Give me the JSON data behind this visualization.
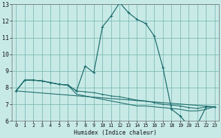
{
  "xlabel": "Humidex (Indice chaleur)",
  "bg_color": "#c8eae6",
  "grid_color": "#7ab8b5",
  "line_color": "#1a6b6b",
  "xlim": [
    -0.5,
    23.5
  ],
  "ylim": [
    6,
    13
  ],
  "yticks": [
    6,
    7,
    8,
    9,
    10,
    11,
    12,
    13
  ],
  "xticks": [
    0,
    1,
    2,
    3,
    4,
    5,
    6,
    7,
    8,
    9,
    10,
    11,
    12,
    13,
    14,
    15,
    16,
    17,
    18,
    19,
    20,
    21,
    22,
    23
  ],
  "line1_x": [
    0,
    1,
    2,
    3,
    4,
    5,
    6,
    7,
    8,
    9,
    10,
    11,
    12,
    13,
    14,
    15,
    16,
    17,
    18,
    19,
    20,
    21,
    22,
    23
  ],
  "line1_y": [
    7.8,
    8.45,
    8.45,
    8.4,
    8.3,
    8.2,
    8.15,
    7.8,
    9.3,
    8.9,
    11.65,
    12.3,
    13.1,
    12.5,
    12.1,
    11.85,
    11.1,
    9.2,
    6.7,
    6.3,
    5.7,
    5.8,
    6.85,
    6.85
  ],
  "line2_x": [
    0,
    1,
    2,
    3,
    4,
    5,
    6,
    7,
    8,
    9,
    10,
    11,
    12,
    13,
    14,
    15,
    16,
    17,
    18,
    19,
    20,
    21,
    22,
    23
  ],
  "line2_y": [
    7.8,
    8.45,
    8.45,
    8.4,
    8.3,
    8.2,
    8.15,
    7.8,
    7.75,
    7.7,
    7.6,
    7.5,
    7.45,
    7.35,
    7.25,
    7.2,
    7.1,
    7.0,
    6.95,
    6.9,
    6.8,
    6.75,
    6.85,
    6.85
  ],
  "line3_x": [
    0,
    1,
    2,
    3,
    4,
    5,
    6,
    7,
    8,
    9,
    10,
    11,
    12,
    13,
    14,
    15,
    16,
    17,
    18,
    19,
    20,
    21,
    22,
    23
  ],
  "line3_y": [
    7.8,
    8.45,
    8.45,
    8.4,
    8.3,
    8.2,
    8.15,
    7.6,
    7.5,
    7.4,
    7.3,
    7.2,
    7.1,
    7.0,
    6.9,
    6.9,
    6.85,
    6.8,
    6.75,
    6.7,
    6.6,
    6.6,
    6.7,
    6.85
  ],
  "line4_x": [
    0,
    23
  ],
  "line4_y": [
    7.8,
    6.85
  ]
}
